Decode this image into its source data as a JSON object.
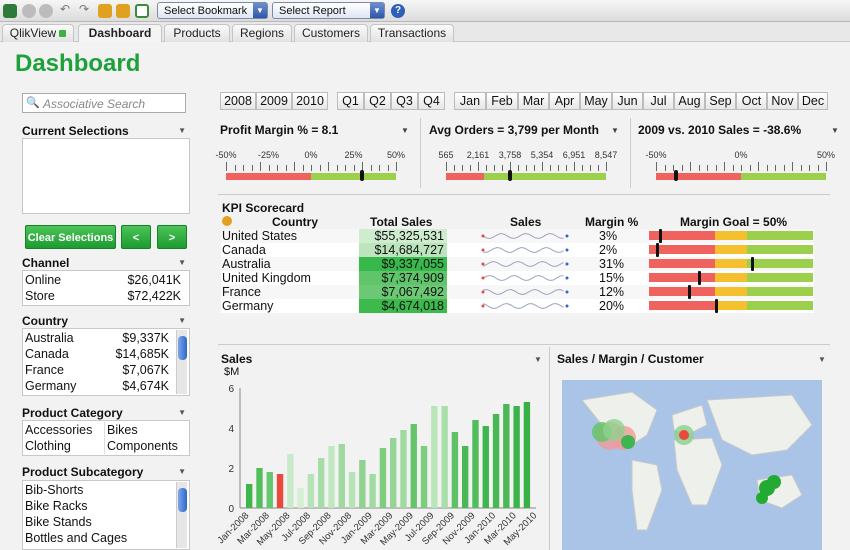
{
  "toolbar": {
    "bookmark": "Select Bookmark",
    "report": "Select Report",
    "help": "?"
  },
  "tabs": [
    "QlikView",
    "Dashboard",
    "Products",
    "Regions",
    "Customers",
    "Transactions"
  ],
  "page_title": "Dashboard",
  "search_placeholder": "Associative Search",
  "current_selections": "Current Selections",
  "clear_selections": "Clear Selections",
  "back": "<",
  "forward": ">",
  "channel": {
    "title": "Channel",
    "rows": [
      {
        "label": "Online",
        "value": "$26,041K"
      },
      {
        "label": "Store",
        "value": "$72,422K"
      }
    ]
  },
  "country": {
    "title": "Country",
    "rows": [
      {
        "label": "Australia",
        "value": "$9,337K"
      },
      {
        "label": "Canada",
        "value": "$14,685K"
      },
      {
        "label": "France",
        "value": "$7,067K"
      },
      {
        "label": "Germany",
        "value": "$4,674K"
      }
    ]
  },
  "product_category": {
    "title": "Product Category",
    "items": [
      "Accessories",
      "Bikes",
      "Clothing",
      "Components"
    ]
  },
  "product_subcategory": {
    "title": "Product Subcategory",
    "items": [
      "Bib-Shorts",
      "Bike Racks",
      "Bike Stands",
      "Bottles and Cages"
    ]
  },
  "years": [
    "2008",
    "2009",
    "2010"
  ],
  "quarters": [
    "Q1",
    "Q2",
    "Q3",
    "Q4"
  ],
  "months": [
    "Jan",
    "Feb",
    "Mar",
    "Apr",
    "May",
    "Jun",
    "Jul",
    "Aug",
    "Sep",
    "Oct",
    "Nov",
    "Dec"
  ],
  "gauges": [
    {
      "title": "Profit Margin % = 8.1",
      "labels": [
        "-50%",
        "-25%",
        "0%",
        "25%",
        "50%"
      ],
      "value_fraction": 0.8
    },
    {
      "title": "Avg Orders = 3,799 per Month",
      "labels": [
        "565",
        "2,161",
        "3,758",
        "5,354",
        "6,951",
        "8,547"
      ],
      "value_fraction": 0.4
    },
    {
      "title": "2009 vs. 2010 Sales = -38.6%",
      "labels": [
        "-50%",
        "0%",
        "50%"
      ],
      "value_fraction": 0.12
    }
  ],
  "gauge_colors": {
    "red": "#f0625e",
    "green": "#9ccf4c"
  },
  "kpi": {
    "title": "KPI Scorecard",
    "headers": {
      "country": "Country",
      "sales": "Total Sales",
      "sparks": "Sales",
      "margin": "Margin %",
      "goal": "Margin Goal = 50%"
    },
    "rows": [
      {
        "country": "United States",
        "sales": "$55,325,531",
        "margin": "3%",
        "shade": "#cfeccf",
        "goal_fraction": 0.06
      },
      {
        "country": "Canada",
        "sales": "$14,684,727",
        "margin": "2%",
        "shade": "#bde5bd",
        "goal_fraction": 0.04
      },
      {
        "country": "Australia",
        "sales": "$9,337,055",
        "margin": "31%",
        "shade": "#36b84a",
        "goal_fraction": 0.62
      },
      {
        "country": "United Kingdom",
        "sales": "$7,374,909",
        "margin": "15%",
        "shade": "#5fc46a",
        "goal_fraction": 0.3
      },
      {
        "country": "France",
        "sales": "$7,067,492",
        "margin": "12%",
        "shade": "#6cc875",
        "goal_fraction": 0.24
      },
      {
        "country": "Germany",
        "sales": "$4,674,018",
        "margin": "20%",
        "shade": "#3cba4c",
        "goal_fraction": 0.4
      }
    ]
  },
  "sales_chart": {
    "title": "Sales",
    "unit": "$M"
  },
  "map_title": "Sales / Margin / Customer",
  "chart_data": {
    "type": "bar",
    "ylim": [
      0,
      6
    ],
    "yticks": [
      "0",
      "2",
      "4",
      "6"
    ],
    "xtick_labels": [
      "Jan-2008",
      "Mar-2008",
      "May-2008",
      "Jul-2008",
      "Sep-2008",
      "Nov-2008",
      "Jan-2009",
      "Mar-2009",
      "May-2009",
      "Jul-2009",
      "Sep-2009",
      "Nov-2009",
      "Jan-2010",
      "Mar-2010",
      "May-2010"
    ],
    "values": [
      1.2,
      2.0,
      1.8,
      1.7,
      2.7,
      1.0,
      1.7,
      2.5,
      3.1,
      3.2,
      1.8,
      2.4,
      1.7,
      3.0,
      3.5,
      3.9,
      4.2,
      3.1,
      5.1,
      5.1,
      3.8,
      3.1,
      4.4,
      4.1,
      4.7,
      5.2,
      5.1,
      5.3
    ],
    "colors": [
      "#3fb54d",
      "#52bf5d",
      "#64c86e",
      "#e84a3e",
      "#c8eac8",
      "#d4efd4",
      "#b5e3b5",
      "#a6dca6",
      "#c1e7c1",
      "#9fd9a0",
      "#b7e4b7",
      "#8fd28f",
      "#a2dba2",
      "#7dcd7e",
      "#95d596",
      "#a0daa0",
      "#66c56b",
      "#7dcd7e",
      "#b9e5b9",
      "#a8dea8",
      "#5ec163",
      "#4ab955",
      "#52bd5c",
      "#3fb54d",
      "#47b852",
      "#4ab955",
      "#3cb44a",
      "#37b146"
    ]
  }
}
